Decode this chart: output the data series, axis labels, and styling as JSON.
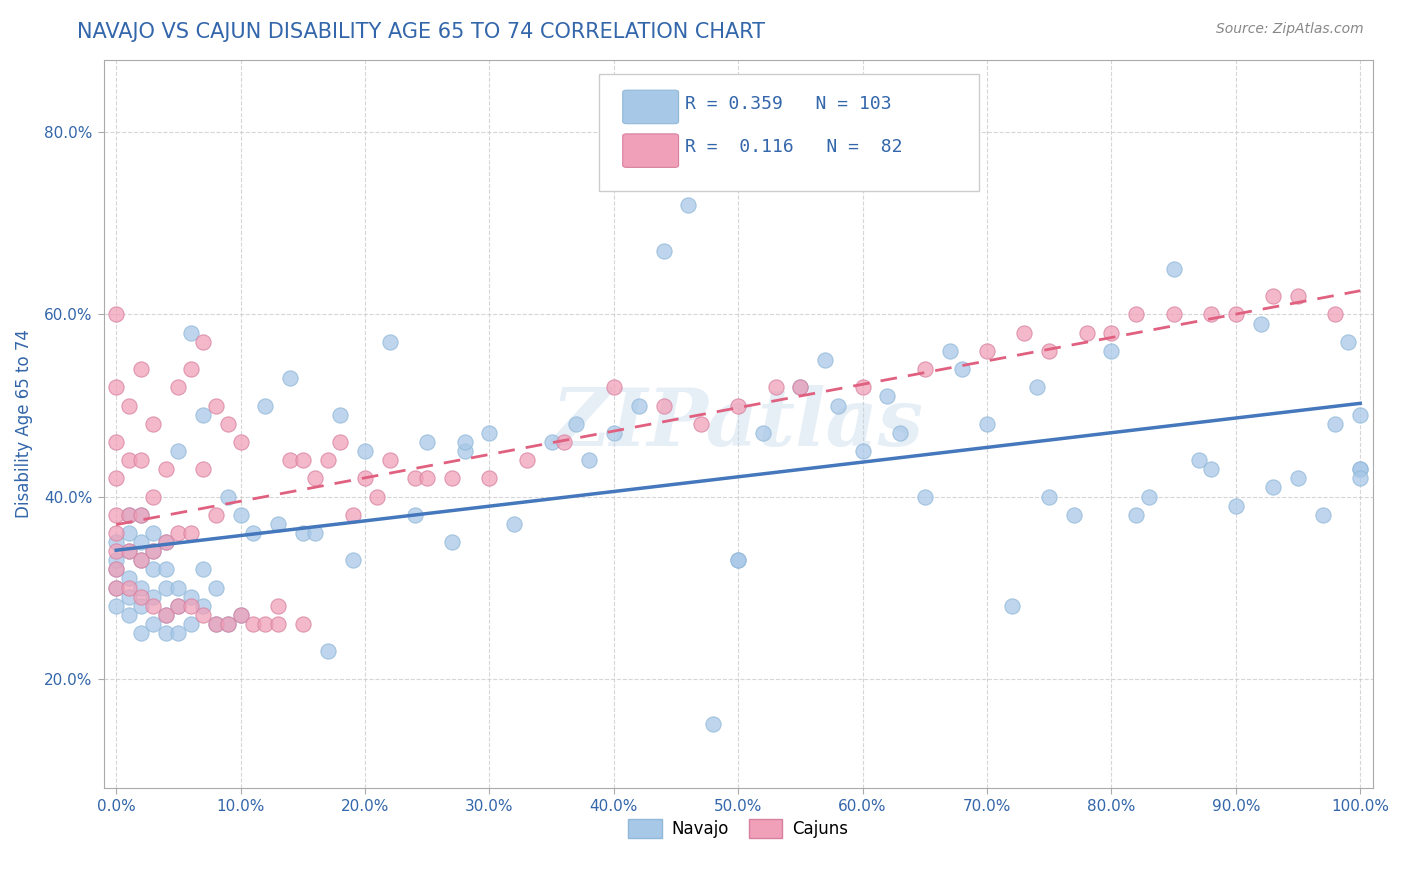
{
  "title": "NAVAJO VS CAJUN DISABILITY AGE 65 TO 74 CORRELATION CHART",
  "source": "Source: ZipAtlas.com",
  "ylabel_text": "Disability Age 65 to 74",
  "x_min": 0.0,
  "x_max": 1.0,
  "y_min": 0.08,
  "y_max": 0.88,
  "x_tick_labels": [
    "0.0%",
    "10.0%",
    "20.0%",
    "30.0%",
    "40.0%",
    "50.0%",
    "60.0%",
    "70.0%",
    "80.0%",
    "90.0%",
    "100.0%"
  ],
  "x_ticks": [
    0.0,
    0.1,
    0.2,
    0.3,
    0.4,
    0.5,
    0.6,
    0.7,
    0.8,
    0.9,
    1.0
  ],
  "y_tick_labels": [
    "20.0%",
    "40.0%",
    "60.0%",
    "80.0%"
  ],
  "y_ticks": [
    0.2,
    0.4,
    0.6,
    0.8
  ],
  "navajo_color": "#a8c8e8",
  "cajun_color": "#f0a0b8",
  "navajo_line_color": "#4477bb",
  "cajun_line_color": "#e06080",
  "title_color": "#3366aa",
  "source_color": "#888888",
  "watermark": "ZIPatlas",
  "R_navajo": 0.359,
  "N_navajo": 103,
  "R_cajun": 0.116,
  "N_cajun": 82,
  "navajo_x": [
    0.0,
    0.0,
    0.0,
    0.0,
    0.0,
    0.01,
    0.01,
    0.01,
    0.01,
    0.01,
    0.01,
    0.02,
    0.02,
    0.02,
    0.02,
    0.02,
    0.02,
    0.03,
    0.03,
    0.03,
    0.03,
    0.03,
    0.04,
    0.04,
    0.04,
    0.04,
    0.04,
    0.05,
    0.05,
    0.05,
    0.05,
    0.06,
    0.06,
    0.06,
    0.07,
    0.07,
    0.07,
    0.08,
    0.08,
    0.09,
    0.09,
    0.1,
    0.1,
    0.11,
    0.12,
    0.13,
    0.14,
    0.15,
    0.16,
    0.17,
    0.18,
    0.19,
    0.2,
    0.22,
    0.24,
    0.25,
    0.27,
    0.28,
    0.3,
    0.32,
    0.35,
    0.37,
    0.4,
    0.42,
    0.44,
    0.46,
    0.48,
    0.5,
    0.52,
    0.55,
    0.57,
    0.58,
    0.6,
    0.62,
    0.63,
    0.65,
    0.67,
    0.68,
    0.7,
    0.72,
    0.74,
    0.75,
    0.77,
    0.8,
    0.82,
    0.83,
    0.85,
    0.87,
    0.88,
    0.9,
    0.92,
    0.93,
    0.95,
    0.97,
    0.98,
    0.99,
    1.0,
    1.0,
    1.0,
    1.0,
    0.5,
    0.38,
    0.28
  ],
  "navajo_y": [
    0.32,
    0.28,
    0.3,
    0.35,
    0.33,
    0.29,
    0.31,
    0.34,
    0.27,
    0.36,
    0.38,
    0.25,
    0.28,
    0.3,
    0.33,
    0.35,
    0.38,
    0.26,
    0.29,
    0.32,
    0.34,
    0.36,
    0.25,
    0.27,
    0.3,
    0.32,
    0.35,
    0.25,
    0.28,
    0.3,
    0.45,
    0.26,
    0.29,
    0.58,
    0.28,
    0.32,
    0.49,
    0.26,
    0.3,
    0.26,
    0.4,
    0.27,
    0.38,
    0.36,
    0.5,
    0.37,
    0.53,
    0.36,
    0.36,
    0.23,
    0.49,
    0.33,
    0.45,
    0.57,
    0.38,
    0.46,
    0.35,
    0.45,
    0.47,
    0.37,
    0.46,
    0.48,
    0.47,
    0.5,
    0.67,
    0.72,
    0.15,
    0.33,
    0.47,
    0.52,
    0.55,
    0.5,
    0.45,
    0.51,
    0.47,
    0.4,
    0.56,
    0.54,
    0.48,
    0.28,
    0.52,
    0.4,
    0.38,
    0.56,
    0.38,
    0.4,
    0.65,
    0.44,
    0.43,
    0.39,
    0.59,
    0.41,
    0.42,
    0.38,
    0.48,
    0.57,
    0.43,
    0.43,
    0.49,
    0.42,
    0.33,
    0.44,
    0.46
  ],
  "cajun_x": [
    0.0,
    0.0,
    0.0,
    0.0,
    0.0,
    0.0,
    0.0,
    0.0,
    0.0,
    0.01,
    0.01,
    0.01,
    0.01,
    0.01,
    0.02,
    0.02,
    0.02,
    0.02,
    0.02,
    0.03,
    0.03,
    0.03,
    0.03,
    0.04,
    0.04,
    0.04,
    0.05,
    0.05,
    0.05,
    0.06,
    0.06,
    0.06,
    0.07,
    0.07,
    0.07,
    0.08,
    0.08,
    0.08,
    0.09,
    0.09,
    0.1,
    0.1,
    0.11,
    0.12,
    0.13,
    0.14,
    0.15,
    0.16,
    0.17,
    0.18,
    0.19,
    0.2,
    0.21,
    0.22,
    0.24,
    0.25,
    0.27,
    0.3,
    0.33,
    0.36,
    0.4,
    0.44,
    0.47,
    0.5,
    0.53,
    0.55,
    0.6,
    0.65,
    0.7,
    0.73,
    0.75,
    0.78,
    0.8,
    0.82,
    0.85,
    0.88,
    0.9,
    0.93,
    0.95,
    0.98,
    0.13,
    0.15
  ],
  "cajun_y": [
    0.3,
    0.32,
    0.34,
    0.36,
    0.38,
    0.42,
    0.46,
    0.52,
    0.6,
    0.3,
    0.34,
    0.38,
    0.44,
    0.5,
    0.29,
    0.33,
    0.38,
    0.44,
    0.54,
    0.28,
    0.34,
    0.4,
    0.48,
    0.27,
    0.35,
    0.43,
    0.28,
    0.36,
    0.52,
    0.28,
    0.36,
    0.54,
    0.27,
    0.43,
    0.57,
    0.26,
    0.38,
    0.5,
    0.26,
    0.48,
    0.27,
    0.46,
    0.26,
    0.26,
    0.26,
    0.44,
    0.44,
    0.42,
    0.44,
    0.46,
    0.38,
    0.42,
    0.4,
    0.44,
    0.42,
    0.42,
    0.42,
    0.42,
    0.44,
    0.46,
    0.52,
    0.5,
    0.48,
    0.5,
    0.52,
    0.52,
    0.52,
    0.54,
    0.56,
    0.58,
    0.56,
    0.58,
    0.58,
    0.6,
    0.6,
    0.6,
    0.6,
    0.62,
    0.62,
    0.6,
    0.28,
    0.26
  ]
}
